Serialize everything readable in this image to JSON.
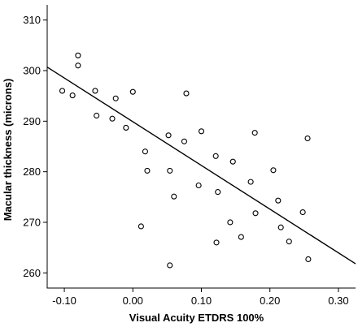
{
  "chart_data": {
    "type": "scatter",
    "xlabel": "Visual Acuity ETDRS 100%",
    "ylabel": "Macular thickness (microns)",
    "xlim": [
      -0.125,
      0.325
    ],
    "ylim": [
      257,
      313
    ],
    "x_ticks": [
      -0.1,
      0.0,
      0.1,
      0.2,
      0.3
    ],
    "x_tick_labels": [
      "-0.10",
      "0.00",
      "0.10",
      "0.20",
      "0.30"
    ],
    "y_ticks": [
      260,
      270,
      280,
      290,
      300,
      310
    ],
    "y_tick_labels": [
      "260",
      "270",
      "280",
      "290",
      "300",
      "310"
    ],
    "grid": false,
    "points": [
      {
        "x": -0.08,
        "y": 303.0
      },
      {
        "x": -0.08,
        "y": 301.0
      },
      {
        "x": -0.103,
        "y": 296.0
      },
      {
        "x": -0.088,
        "y": 295.1
      },
      {
        "x": -0.055,
        "y": 296.0
      },
      {
        "x": -0.053,
        "y": 291.1
      },
      {
        "x": -0.03,
        "y": 290.5
      },
      {
        "x": -0.025,
        "y": 294.5
      },
      {
        "x": -0.01,
        "y": 288.7
      },
      {
        "x": 0.0,
        "y": 295.8
      },
      {
        "x": 0.012,
        "y": 269.2
      },
      {
        "x": 0.018,
        "y": 284.0
      },
      {
        "x": 0.021,
        "y": 280.2
      },
      {
        "x": 0.052,
        "y": 287.2
      },
      {
        "x": 0.054,
        "y": 280.2
      },
      {
        "x": 0.054,
        "y": 261.5
      },
      {
        "x": 0.06,
        "y": 275.1
      },
      {
        "x": 0.075,
        "y": 286.0
      },
      {
        "x": 0.078,
        "y": 295.5
      },
      {
        "x": 0.096,
        "y": 277.3
      },
      {
        "x": 0.1,
        "y": 288.0
      },
      {
        "x": 0.121,
        "y": 283.1
      },
      {
        "x": 0.122,
        "y": 266.0
      },
      {
        "x": 0.124,
        "y": 276.0
      },
      {
        "x": 0.142,
        "y": 270.0
      },
      {
        "x": 0.146,
        "y": 282.0
      },
      {
        "x": 0.158,
        "y": 267.1
      },
      {
        "x": 0.172,
        "y": 278.0
      },
      {
        "x": 0.178,
        "y": 287.7
      },
      {
        "x": 0.179,
        "y": 271.8
      },
      {
        "x": 0.205,
        "y": 280.3
      },
      {
        "x": 0.212,
        "y": 274.3
      },
      {
        "x": 0.216,
        "y": 269.0
      },
      {
        "x": 0.228,
        "y": 266.2
      },
      {
        "x": 0.248,
        "y": 272.0
      },
      {
        "x": 0.255,
        "y": 286.6
      },
      {
        "x": 0.256,
        "y": 262.7
      }
    ],
    "fit_line": {
      "x": [
        -0.125,
        0.325
      ],
      "y": [
        300.7,
        261.8
      ]
    }
  }
}
